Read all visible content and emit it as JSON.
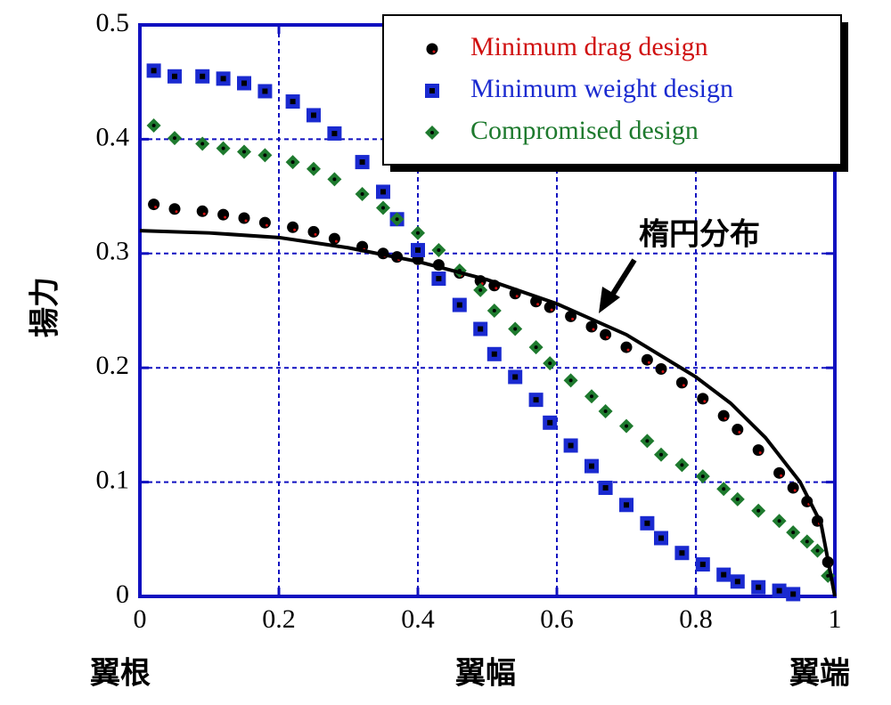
{
  "chart_data": {
    "type": "scatter",
    "xlim": [
      0,
      1
    ],
    "ylim": [
      0,
      0.5
    ],
    "xticks": [
      0,
      0.2,
      0.4,
      0.6,
      0.8,
      1
    ],
    "yticks": [
      0,
      0.1,
      0.2,
      0.3,
      0.4,
      0.5
    ],
    "grid": true,
    "grid_color": "#1010c0",
    "frame_color": "#1010c0",
    "ylabel": "揚力",
    "x_labels": [
      "翼根",
      "翼幅",
      "翼端"
    ],
    "legend": "upper right",
    "series": [
      {
        "name": "Minimum drag design",
        "marker": "circle",
        "color": "#000000",
        "legend_color": "#d01010",
        "x": [
          0.02,
          0.05,
          0.09,
          0.12,
          0.15,
          0.18,
          0.22,
          0.25,
          0.28,
          0.32,
          0.35,
          0.37,
          0.4,
          0.43,
          0.46,
          0.49,
          0.51,
          0.54,
          0.57,
          0.59,
          0.62,
          0.65,
          0.67,
          0.7,
          0.73,
          0.75,
          0.78,
          0.81,
          0.84,
          0.86,
          0.89,
          0.92,
          0.94,
          0.96,
          0.975,
          0.99
        ],
        "values": [
          0.343,
          0.339,
          0.337,
          0.334,
          0.331,
          0.327,
          0.323,
          0.319,
          0.313,
          0.306,
          0.3,
          0.297,
          0.295,
          0.29,
          0.283,
          0.276,
          0.272,
          0.265,
          0.258,
          0.253,
          0.245,
          0.236,
          0.229,
          0.218,
          0.207,
          0.199,
          0.187,
          0.173,
          0.158,
          0.146,
          0.128,
          0.108,
          0.095,
          0.083,
          0.066,
          0.03
        ]
      },
      {
        "name": "Minimum weight design",
        "marker": "square",
        "color": "#1a2ad0",
        "legend_color": "#1a2ad0",
        "x": [
          0.02,
          0.05,
          0.09,
          0.12,
          0.15,
          0.18,
          0.22,
          0.25,
          0.28,
          0.32,
          0.35,
          0.37,
          0.4,
          0.43,
          0.46,
          0.49,
          0.51,
          0.54,
          0.57,
          0.59,
          0.62,
          0.65,
          0.67,
          0.7,
          0.73,
          0.75,
          0.78,
          0.81,
          0.84,
          0.86,
          0.89,
          0.92,
          0.94
        ],
        "values": [
          0.46,
          0.455,
          0.455,
          0.453,
          0.449,
          0.442,
          0.433,
          0.421,
          0.405,
          0.38,
          0.354,
          0.33,
          0.303,
          0.278,
          0.255,
          0.234,
          0.212,
          0.192,
          0.172,
          0.152,
          0.132,
          0.114,
          0.095,
          0.08,
          0.064,
          0.051,
          0.038,
          0.028,
          0.019,
          0.013,
          0.008,
          0.005,
          0.002
        ]
      },
      {
        "name": "Compromised design",
        "marker": "diamond",
        "color": "#1e7a2e",
        "legend_color": "#1e7a2e",
        "x": [
          0.02,
          0.05,
          0.09,
          0.12,
          0.15,
          0.18,
          0.22,
          0.25,
          0.28,
          0.32,
          0.35,
          0.37,
          0.4,
          0.43,
          0.46,
          0.49,
          0.51,
          0.54,
          0.57,
          0.59,
          0.62,
          0.65,
          0.67,
          0.7,
          0.73,
          0.75,
          0.78,
          0.81,
          0.84,
          0.86,
          0.89,
          0.92,
          0.94,
          0.96,
          0.975,
          0.99
        ],
        "values": [
          0.412,
          0.401,
          0.396,
          0.392,
          0.389,
          0.386,
          0.38,
          0.374,
          0.365,
          0.352,
          0.34,
          0.33,
          0.318,
          0.303,
          0.285,
          0.268,
          0.25,
          0.234,
          0.218,
          0.204,
          0.189,
          0.175,
          0.162,
          0.149,
          0.136,
          0.124,
          0.115,
          0.105,
          0.094,
          0.085,
          0.075,
          0.066,
          0.056,
          0.048,
          0.04,
          0.018
        ]
      },
      {
        "name": "楕円分布",
        "marker": "line",
        "color": "#000000",
        "x": [
          0,
          0.1,
          0.2,
          0.3,
          0.4,
          0.5,
          0.6,
          0.7,
          0.8,
          0.85,
          0.9,
          0.95,
          0.98,
          1
        ],
        "values": [
          0.32,
          0.318,
          0.314,
          0.305,
          0.293,
          0.277,
          0.256,
          0.229,
          0.192,
          0.169,
          0.139,
          0.1,
          0.064,
          0
        ]
      }
    ]
  }
}
